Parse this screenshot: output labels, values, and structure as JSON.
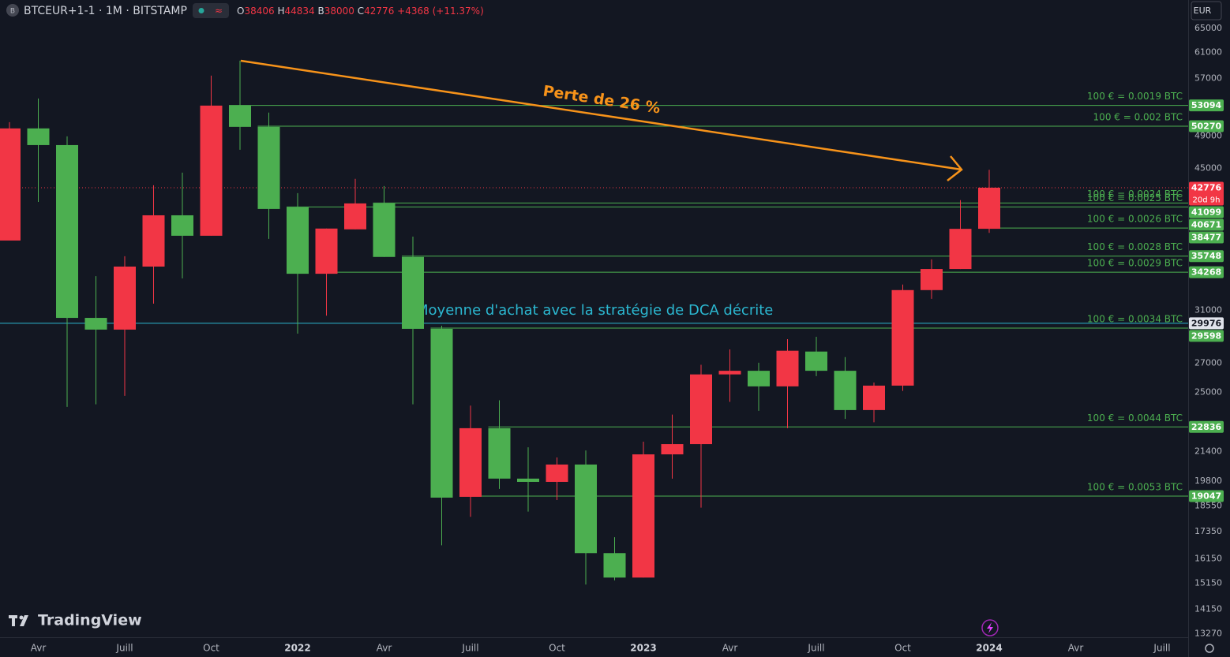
{
  "header": {
    "symbol": "BTCEUR+1-1 · 1M · BITSTAMP",
    "ohlc": [
      {
        "key": "O",
        "value": 38406
      },
      {
        "key": "H",
        "value": 44834
      },
      {
        "key": "B",
        "value": 38000
      },
      {
        "key": "C",
        "value": 42776
      }
    ],
    "change": {
      "value": 4368,
      "label": "+4368"
    },
    "change_pct": {
      "value": 11.37,
      "label": "(+11.37%)"
    }
  },
  "chart_data": {
    "type": "candlestick",
    "currency": "EUR",
    "categories": [
      null,
      "Avr",
      null,
      null,
      "Juill",
      null,
      null,
      "Oct",
      null,
      null,
      "2022",
      null,
      null,
      "Avr",
      null,
      null,
      "Juill",
      null,
      null,
      "Oct",
      null,
      null,
      "2023",
      null,
      null,
      "Avr",
      null,
      null,
      "Juill",
      null,
      null,
      "Oct",
      null,
      null,
      "2024",
      null,
      null,
      "Avr",
      null,
      null,
      "Juill"
    ],
    "open": [
      37240,
      49980,
      47840,
      30400,
      29480,
      34780,
      39790,
      37710,
      53060,
      50180,
      40630,
      34130,
      38350,
      41050,
      35670,
      29540,
      19010,
      22760,
      19940,
      19770,
      20690,
      16400,
      15380,
      21250,
      21830,
      26210,
      26460,
      25400,
      27830,
      26460,
      23870,
      25450,
      32700,
      34560,
      38406,
      null,
      null,
      null,
      null,
      null,
      null
    ],
    "high": [
      50800,
      54060,
      48950,
      33920,
      35740,
      43050,
      44500,
      57410,
      59710,
      52090,
      42170,
      38430,
      43780,
      42960,
      37630,
      29780,
      24150,
      24490,
      21650,
      21080,
      21470,
      17100,
      21970,
      23590,
      26880,
      27990,
      27030,
      28750,
      28930,
      27430,
      25660,
      33180,
      35440,
      41400,
      44834,
      null,
      null,
      null,
      null,
      null,
      null
    ],
    "low": [
      37240,
      41210,
      24070,
      24230,
      24780,
      31560,
      33720,
      37710,
      47260,
      37400,
      29170,
      30580,
      38350,
      35670,
      24230,
      16740,
      18040,
      19410,
      18290,
      18850,
      15100,
      15270,
      15380,
      19940,
      18480,
      24390,
      23820,
      22760,
      26090,
      23320,
      23120,
      25100,
      31960,
      34560,
      38000,
      null,
      null,
      null,
      null,
      null,
      null
    ],
    "close": [
      49980,
      47840,
      30400,
      29480,
      34780,
      39790,
      37710,
      53060,
      50180,
      40460,
      34130,
      38430,
      41050,
      35670,
      29540,
      18970,
      22760,
      19940,
      19770,
      20690,
      16400,
      15380,
      21250,
      21830,
      26210,
      26460,
      25400,
      27890,
      26460,
      23870,
      25450,
      32700,
      34560,
      38400,
      42776,
      null,
      null,
      null,
      null,
      null,
      null
    ],
    "up_color": "#f23645",
    "down_color": "#4caf50",
    "log_scale": true,
    "grid": false,
    "ylim": [
      13150,
      70000
    ],
    "yticks": [
      65000,
      61000,
      57000,
      49000,
      45000,
      31000,
      27000,
      25000,
      21400,
      19800,
      18550,
      17350,
      16150,
      15150,
      14150,
      13270
    ],
    "last_price": {
      "value": 42776,
      "countdown": "20d 9h",
      "color": "#f23645"
    },
    "level_color": "#4caf50",
    "levels": [
      {
        "value": 53094,
        "label": "100 € = 0.0019 BTC"
      },
      {
        "value": 50270,
        "label": "100 € = 0.002 BTC"
      },
      {
        "value": 41099,
        "label": "100 € = 0.0024 BTC"
      },
      {
        "value": 40671,
        "label": "100 € = 0.0025 BTC"
      },
      {
        "value": 38477,
        "label": "100 € = 0.0026 BTC"
      },
      {
        "value": 35748,
        "label": "100 € = 0.0028 BTC"
      },
      {
        "value": 34268,
        "label": "100 € = 0.0029 BTC"
      },
      {
        "value": 29598,
        "label": "100 € = 0.0034 BTC"
      },
      {
        "value": 22836,
        "label": "100 € = 0.0044 BTC"
      },
      {
        "value": 19047,
        "label": "100 € = 0.0053 BTC"
      }
    ],
    "average": {
      "value": 29976,
      "label": "Moyenne d'achat avec la stratégie de DCA décrite",
      "color": "#2bb7d0"
    },
    "annotation": {
      "text": "Perte de 26 %",
      "color": "#f7931a"
    }
  },
  "branding": "TradingView"
}
